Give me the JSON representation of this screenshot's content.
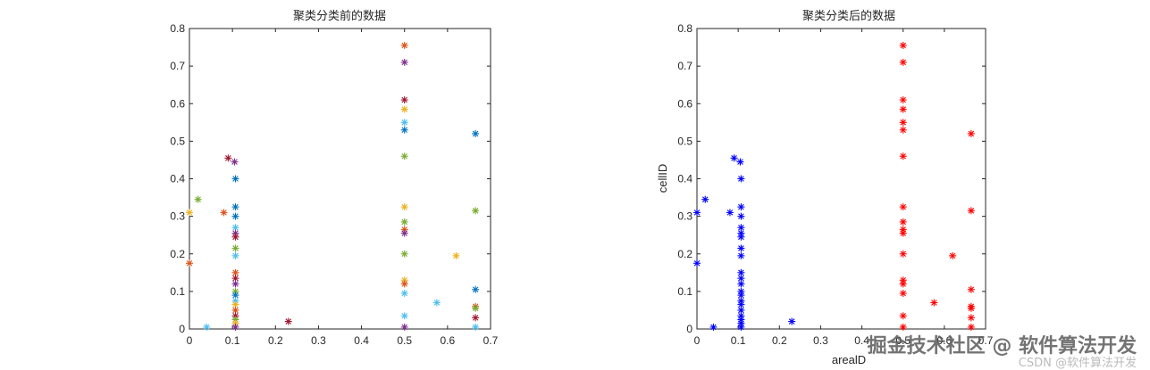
{
  "chart_data": [
    {
      "type": "scatter",
      "title": "聚类分类前的数据",
      "xlabel": "",
      "ylabel": "",
      "xlim": [
        0,
        0.7
      ],
      "ylim": [
        0,
        0.8
      ],
      "xticks": [
        "0",
        "0.1",
        "0.2",
        "0.3",
        "0.4",
        "0.5",
        "0.6",
        "0.7"
      ],
      "yticks": [
        "0",
        "0.1",
        "0.2",
        "0.3",
        "0.4",
        "0.5",
        "0.6",
        "0.7",
        "0.8"
      ],
      "marker": "*",
      "grid": false,
      "palette": [
        "#0072BD",
        "#D95319",
        "#EDB120",
        "#7E2F8E",
        "#77AC30",
        "#4DBEEE",
        "#A2142F"
      ],
      "points": [
        {
          "x": 0.0,
          "y": 0.31,
          "c": 2
        },
        {
          "x": 0.0,
          "y": 0.175,
          "c": 1
        },
        {
          "x": 0.02,
          "y": 0.345,
          "c": 4
        },
        {
          "x": 0.04,
          "y": 0.005,
          "c": 5
        },
        {
          "x": 0.08,
          "y": 0.31,
          "c": 1
        },
        {
          "x": 0.09,
          "y": 0.455,
          "c": 6
        },
        {
          "x": 0.105,
          "y": 0.445,
          "c": 3
        },
        {
          "x": 0.107,
          "y": 0.4,
          "c": 0
        },
        {
          "x": 0.107,
          "y": 0.325,
          "c": 0
        },
        {
          "x": 0.107,
          "y": 0.3,
          "c": 0
        },
        {
          "x": 0.107,
          "y": 0.27,
          "c": 5
        },
        {
          "x": 0.107,
          "y": 0.255,
          "c": 3
        },
        {
          "x": 0.107,
          "y": 0.245,
          "c": 6
        },
        {
          "x": 0.107,
          "y": 0.215,
          "c": 4
        },
        {
          "x": 0.107,
          "y": 0.195,
          "c": 5
        },
        {
          "x": 0.107,
          "y": 0.15,
          "c": 1
        },
        {
          "x": 0.107,
          "y": 0.135,
          "c": 6
        },
        {
          "x": 0.107,
          "y": 0.12,
          "c": 3
        },
        {
          "x": 0.107,
          "y": 0.1,
          "c": 4
        },
        {
          "x": 0.107,
          "y": 0.09,
          "c": 0
        },
        {
          "x": 0.107,
          "y": 0.075,
          "c": 5
        },
        {
          "x": 0.107,
          "y": 0.065,
          "c": 2
        },
        {
          "x": 0.107,
          "y": 0.05,
          "c": 1
        },
        {
          "x": 0.107,
          "y": 0.035,
          "c": 6
        },
        {
          "x": 0.107,
          "y": 0.025,
          "c": 4
        },
        {
          "x": 0.107,
          "y": 0.015,
          "c": 2
        },
        {
          "x": 0.107,
          "y": 0.005,
          "c": 3
        },
        {
          "x": 0.23,
          "y": 0.02,
          "c": 6
        },
        {
          "x": 0.5,
          "y": 0.755,
          "c": 1
        },
        {
          "x": 0.5,
          "y": 0.71,
          "c": 3
        },
        {
          "x": 0.5,
          "y": 0.61,
          "c": 6
        },
        {
          "x": 0.5,
          "y": 0.585,
          "c": 2
        },
        {
          "x": 0.5,
          "y": 0.55,
          "c": 5
        },
        {
          "x": 0.5,
          "y": 0.53,
          "c": 0
        },
        {
          "x": 0.5,
          "y": 0.46,
          "c": 4
        },
        {
          "x": 0.5,
          "y": 0.325,
          "c": 2
        },
        {
          "x": 0.5,
          "y": 0.285,
          "c": 4
        },
        {
          "x": 0.5,
          "y": 0.265,
          "c": 1
        },
        {
          "x": 0.5,
          "y": 0.255,
          "c": 3
        },
        {
          "x": 0.5,
          "y": 0.2,
          "c": 4
        },
        {
          "x": 0.5,
          "y": 0.13,
          "c": 2
        },
        {
          "x": 0.5,
          "y": 0.12,
          "c": 1
        },
        {
          "x": 0.5,
          "y": 0.095,
          "c": 5
        },
        {
          "x": 0.5,
          "y": 0.035,
          "c": 5
        },
        {
          "x": 0.5,
          "y": 0.005,
          "c": 3
        },
        {
          "x": 0.575,
          "y": 0.07,
          "c": 5
        },
        {
          "x": 0.62,
          "y": 0.195,
          "c": 2
        },
        {
          "x": 0.665,
          "y": 0.52,
          "c": 0
        },
        {
          "x": 0.665,
          "y": 0.315,
          "c": 4
        },
        {
          "x": 0.665,
          "y": 0.105,
          "c": 0
        },
        {
          "x": 0.665,
          "y": 0.06,
          "c": 1
        },
        {
          "x": 0.665,
          "y": 0.055,
          "c": 4
        },
        {
          "x": 0.665,
          "y": 0.03,
          "c": 6
        },
        {
          "x": 0.665,
          "y": 0.005,
          "c": 5
        }
      ]
    },
    {
      "type": "scatter",
      "title": "聚类分类后的数据",
      "xlabel": "arealD",
      "ylabel": "cellID",
      "xlim": [
        0,
        0.7
      ],
      "ylim": [
        0,
        0.8
      ],
      "xticks": [
        "0",
        "0.1",
        "0.2",
        "0.3",
        "0.4",
        "0.5",
        "0.6",
        "0.7"
      ],
      "yticks": [
        "0",
        "0.1",
        "0.2",
        "0.3",
        "0.4",
        "0.5",
        "0.6",
        "0.7",
        "0.8"
      ],
      "marker": "*",
      "grid": false,
      "series": [
        {
          "color": "#0000FF",
          "points": [
            {
              "x": 0.0,
              "y": 0.31
            },
            {
              "x": 0.0,
              "y": 0.175
            },
            {
              "x": 0.02,
              "y": 0.345
            },
            {
              "x": 0.04,
              "y": 0.005
            },
            {
              "x": 0.08,
              "y": 0.31
            },
            {
              "x": 0.09,
              "y": 0.455
            },
            {
              "x": 0.105,
              "y": 0.445
            },
            {
              "x": 0.107,
              "y": 0.4
            },
            {
              "x": 0.107,
              "y": 0.325
            },
            {
              "x": 0.107,
              "y": 0.3
            },
            {
              "x": 0.107,
              "y": 0.27
            },
            {
              "x": 0.107,
              "y": 0.255
            },
            {
              "x": 0.107,
              "y": 0.245
            },
            {
              "x": 0.107,
              "y": 0.215
            },
            {
              "x": 0.107,
              "y": 0.195
            },
            {
              "x": 0.107,
              "y": 0.15
            },
            {
              "x": 0.107,
              "y": 0.135
            },
            {
              "x": 0.107,
              "y": 0.12
            },
            {
              "x": 0.107,
              "y": 0.1
            },
            {
              "x": 0.107,
              "y": 0.09
            },
            {
              "x": 0.107,
              "y": 0.075
            },
            {
              "x": 0.107,
              "y": 0.065
            },
            {
              "x": 0.107,
              "y": 0.05
            },
            {
              "x": 0.107,
              "y": 0.035
            },
            {
              "x": 0.107,
              "y": 0.025
            },
            {
              "x": 0.107,
              "y": 0.015
            },
            {
              "x": 0.107,
              "y": 0.005
            },
            {
              "x": 0.23,
              "y": 0.02
            }
          ]
        },
        {
          "color": "#FF0000",
          "points": [
            {
              "x": 0.5,
              "y": 0.755
            },
            {
              "x": 0.5,
              "y": 0.71
            },
            {
              "x": 0.5,
              "y": 0.61
            },
            {
              "x": 0.5,
              "y": 0.585
            },
            {
              "x": 0.5,
              "y": 0.55
            },
            {
              "x": 0.5,
              "y": 0.53
            },
            {
              "x": 0.5,
              "y": 0.46
            },
            {
              "x": 0.5,
              "y": 0.325
            },
            {
              "x": 0.5,
              "y": 0.285
            },
            {
              "x": 0.5,
              "y": 0.265
            },
            {
              "x": 0.5,
              "y": 0.255
            },
            {
              "x": 0.5,
              "y": 0.2
            },
            {
              "x": 0.5,
              "y": 0.13
            },
            {
              "x": 0.5,
              "y": 0.12
            },
            {
              "x": 0.5,
              "y": 0.095
            },
            {
              "x": 0.5,
              "y": 0.035
            },
            {
              "x": 0.5,
              "y": 0.005
            },
            {
              "x": 0.575,
              "y": 0.07
            },
            {
              "x": 0.62,
              "y": 0.195
            },
            {
              "x": 0.665,
              "y": 0.52
            },
            {
              "x": 0.665,
              "y": 0.315
            },
            {
              "x": 0.665,
              "y": 0.105
            },
            {
              "x": 0.665,
              "y": 0.06
            },
            {
              "x": 0.665,
              "y": 0.055
            },
            {
              "x": 0.665,
              "y": 0.03
            },
            {
              "x": 0.665,
              "y": 0.005
            }
          ]
        }
      ]
    }
  ],
  "watermark": {
    "main": "掘金技术社区 @ 软件算法开发",
    "sub": "CSDN @软件算法开发"
  }
}
